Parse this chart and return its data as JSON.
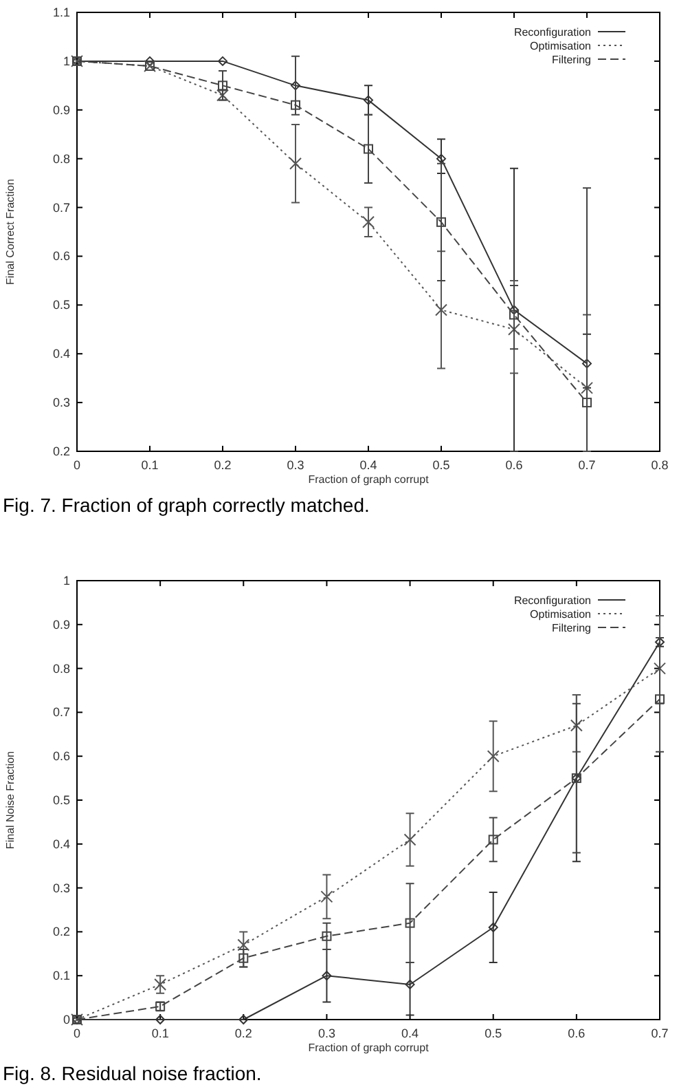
{
  "chart_data": [
    {
      "type": "line",
      "xlabel": "Fraction of graph corrupt",
      "ylabel": "Final Correct Fraction",
      "annotations": [
        "Fig. 7. Fraction of graph correctly matched."
      ],
      "x": [
        0,
        0.1,
        0.2,
        0.3,
        0.4,
        0.5,
        0.6,
        0.7
      ],
      "xlim": [
        0,
        0.8
      ],
      "xticks": [
        0,
        0.1,
        0.2,
        0.3,
        0.4,
        0.5,
        0.6,
        0.7,
        0.8
      ],
      "ylim": [
        0.2,
        1.1
      ],
      "yticks": [
        0.2,
        0.3,
        0.4,
        0.5,
        0.6,
        0.7,
        0.8,
        0.9,
        1,
        1.1
      ],
      "legend": "top right",
      "grid": false,
      "series": [
        {
          "name": "Reconfiguration",
          "color": "#333333",
          "marker": "diamond",
          "line_style": "solid",
          "values": [
            1,
            1,
            1,
            0.95,
            0.92,
            0.8,
            0.49,
            0.38
          ],
          "errors": [
            null,
            null,
            null,
            null,
            [
              0.89,
              0.95
            ],
            [
              0.77,
              0.84
            ],
            [
              0.2,
              0.78
            ],
            [
              0.33,
              0.44
            ]
          ]
        },
        {
          "name": "Optimisation",
          "color": "#555555",
          "marker": "cross",
          "line_style": "dotted",
          "values": [
            1,
            0.99,
            0.93,
            0.79,
            0.67,
            0.49,
            0.45,
            0.33
          ],
          "errors": [
            null,
            null,
            [
              0.92,
              0.94
            ],
            [
              0.71,
              0.87
            ],
            [
              0.64,
              0.7
            ],
            [
              0.37,
              0.61
            ],
            [
              0.36,
              0.55
            ],
            [
              0.2,
              0.48
            ]
          ]
        },
        {
          "name": "Filtering",
          "color": "#444444",
          "marker": "square",
          "line_style": "dashed",
          "values": [
            1,
            0.99,
            0.95,
            0.91,
            0.82,
            0.67,
            0.48,
            0.3
          ],
          "errors": [
            null,
            null,
            [
              0.92,
              0.98
            ],
            [
              0.89,
              1.01
            ],
            [
              0.75,
              0.89
            ],
            [
              0.55,
              0.79
            ],
            [
              0.41,
              0.54
            ],
            [
              0.2,
              0.74
            ]
          ]
        }
      ]
    },
    {
      "type": "line",
      "xlabel": "Fraction of graph corrupt",
      "ylabel": "Final Noise Fraction",
      "annotations": [
        "Fig. 8. Residual noise fraction."
      ],
      "x": [
        0,
        0.1,
        0.2,
        0.3,
        0.4,
        0.5,
        0.6,
        0.7
      ],
      "xlim": [
        0,
        0.7
      ],
      "xticks": [
        0,
        0.1,
        0.2,
        0.3,
        0.4,
        0.5,
        0.6,
        0.7
      ],
      "ylim": [
        0,
        1
      ],
      "yticks": [
        0,
        0.1,
        0.2,
        0.3,
        0.4,
        0.5,
        0.6,
        0.7,
        0.8,
        0.9,
        1
      ],
      "legend": "top right",
      "grid": false,
      "series": [
        {
          "name": "Reconfiguration",
          "color": "#333333",
          "marker": "diamond",
          "line_style": "solid",
          "values": [
            0,
            0,
            0,
            0.1,
            0.08,
            0.21,
            0.55,
            0.86
          ],
          "errors": [
            null,
            null,
            null,
            [
              0.04,
              0.16
            ],
            [
              0.01,
              0.13
            ],
            [
              0.13,
              0.29
            ],
            [
              0.36,
              0.74
            ],
            [
              0.85,
              0.87
            ]
          ]
        },
        {
          "name": "Optimisation",
          "color": "#555555",
          "marker": "cross",
          "line_style": "dotted",
          "values": [
            0,
            0.08,
            0.17,
            0.28,
            0.41,
            0.6,
            0.67,
            0.8
          ],
          "errors": [
            null,
            [
              0.06,
              0.1
            ],
            [
              0.12,
              0.2
            ],
            [
              0.23,
              0.33
            ],
            [
              0.35,
              0.47
            ],
            [
              0.52,
              0.68
            ],
            [
              0.61,
              0.74
            ],
            [
              0.72,
              0.92
            ]
          ]
        },
        {
          "name": "Filtering",
          "color": "#444444",
          "marker": "square",
          "line_style": "dashed",
          "values": [
            0,
            0.03,
            0.14,
            0.19,
            0.22,
            0.41,
            0.55,
            0.73
          ],
          "errors": [
            null,
            [
              0.02,
              0.04
            ],
            [
              0.12,
              0.16
            ],
            [
              0.16,
              0.22
            ],
            [
              0.13,
              0.31
            ],
            [
              0.36,
              0.46
            ],
            [
              0.38,
              0.72
            ],
            [
              0.61,
              0.87
            ]
          ]
        }
      ]
    }
  ]
}
